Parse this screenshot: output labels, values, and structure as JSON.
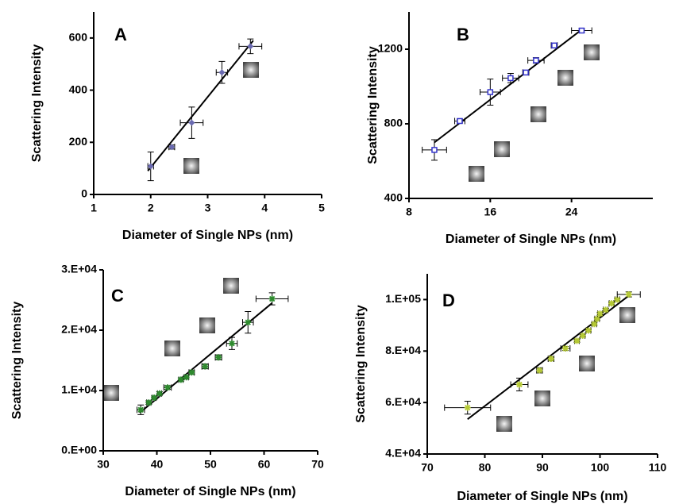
{
  "chart_data": [
    {
      "type": "scatter",
      "panel_label": "A",
      "x_label": "Diameter of Single NPs (nm)",
      "y_label": "Scattering Intensity",
      "xlim": [
        1,
        5
      ],
      "xticks": [
        1,
        2,
        3,
        4,
        5
      ],
      "ylim": [
        0,
        700
      ],
      "yticks": [
        0,
        200,
        400,
        600
      ],
      "marker": "diamond",
      "color": "#6a6ab0",
      "x": [
        2.0,
        2.37,
        2.72,
        3.25,
        3.75
      ],
      "values": [
        108,
        182,
        275,
        468,
        568
      ],
      "xerr": [
        0.05,
        0.05,
        0.2,
        0.1,
        0.2
      ],
      "yerr": [
        55,
        8,
        60,
        42,
        28
      ],
      "fit": {
        "x": [
          1.95,
          3.8
        ],
        "y": [
          90,
          590
        ]
      }
    },
    {
      "type": "scatter",
      "panel_label": "B",
      "x_label": "Diameter of Single NPs (nm)",
      "y_label": "Scattering Intensity",
      "xlim": [
        8,
        32
      ],
      "xticks": [
        8,
        16,
        24
      ],
      "ylim": [
        400,
        1400
      ],
      "yticks": [
        400,
        800,
        1200
      ],
      "marker": "square",
      "color": "#3333cc",
      "x": [
        10.5,
        13,
        16,
        18,
        19.5,
        20.5,
        22.3,
        25
      ],
      "values": [
        660,
        815,
        970,
        1045,
        1075,
        1140,
        1220,
        1300
      ],
      "xerr": [
        1.2,
        0.5,
        1,
        0.8,
        0.3,
        0.8,
        0.3,
        1
      ],
      "yerr": [
        55,
        10,
        70,
        25,
        10,
        15,
        10,
        10
      ],
      "fit": {
        "x": [
          10.5,
          25
        ],
        "y": [
          700,
          1305
        ]
      }
    },
    {
      "type": "scatter",
      "panel_label": "C",
      "x_label": "Diameter of Single NPs (nm)",
      "y_label": "Scattering Intensity",
      "xlim": [
        30,
        70
      ],
      "xticks": [
        30,
        40,
        50,
        60,
        70
      ],
      "ylim": [
        0,
        30000
      ],
      "yticks": [
        {
          "value": 0,
          "label": "0.E+00"
        },
        {
          "value": 10000,
          "label": "1.E+04"
        },
        {
          "value": 20000,
          "label": "2.E+04"
        },
        {
          "value": 30000,
          "label": "3.E+04"
        }
      ],
      "marker": "asterisk",
      "color": "#2e8b2e",
      "x": [
        37,
        38.5,
        39.5,
        40.5,
        42,
        44.5,
        45.5,
        46.5,
        49,
        51.5,
        54,
        57,
        61.5
      ],
      "values": [
        6800,
        8000,
        8800,
        9500,
        10500,
        11800,
        12200,
        13000,
        14000,
        15500,
        17800,
        21300,
        25200
      ],
      "xerr": [
        0.7,
        0.4,
        0.4,
        0.4,
        0.7,
        0.4,
        0.4,
        0.5,
        0.6,
        0.6,
        1,
        1,
        3
      ],
      "yerr": [
        800,
        300,
        300,
        300,
        300,
        300,
        300,
        300,
        400,
        400,
        1000,
        1800,
        1000
      ],
      "fit": {
        "x": [
          36.8,
          61.5
        ],
        "y": [
          6300,
          24500
        ]
      }
    },
    {
      "type": "scatter",
      "panel_label": "D",
      "x_label": "Diameter of Single NPs (nm)",
      "y_label": "Scattering Intensity",
      "xlim": [
        70,
        110
      ],
      "xticks": [
        70,
        80,
        90,
        100,
        110
      ],
      "ylim": [
        40000,
        110000
      ],
      "yticks": [
        {
          "value": 40000,
          "label": "4.E+04"
        },
        {
          "value": 60000,
          "label": "6.E+04"
        },
        {
          "value": 80000,
          "label": "8.E+04"
        },
        {
          "value": 100000,
          "label": "1.E+05"
        }
      ],
      "marker": "asterisk",
      "color": "#b5c934",
      "x": [
        77,
        86,
        89.5,
        91.5,
        94,
        96,
        97,
        98,
        99,
        99.5,
        100,
        101,
        102,
        103,
        105
      ],
      "values": [
        58000,
        67000,
        72500,
        77000,
        81000,
        84000,
        86000,
        88000,
        90500,
        92500,
        94500,
        96000,
        98500,
        100000,
        102000
      ],
      "xerr": [
        4,
        1.5,
        0.5,
        0.5,
        0.8,
        0.4,
        0.4,
        0.4,
        0.4,
        0.4,
        0.4,
        0.4,
        0.4,
        0.4,
        2
      ],
      "yerr": [
        2500,
        2500,
        1000,
        800,
        800,
        600,
        600,
        600,
        600,
        600,
        600,
        600,
        600,
        600,
        1000
      ],
      "fit": {
        "x": [
          77,
          105
        ],
        "y": [
          53500,
          101500
        ]
      }
    }
  ]
}
